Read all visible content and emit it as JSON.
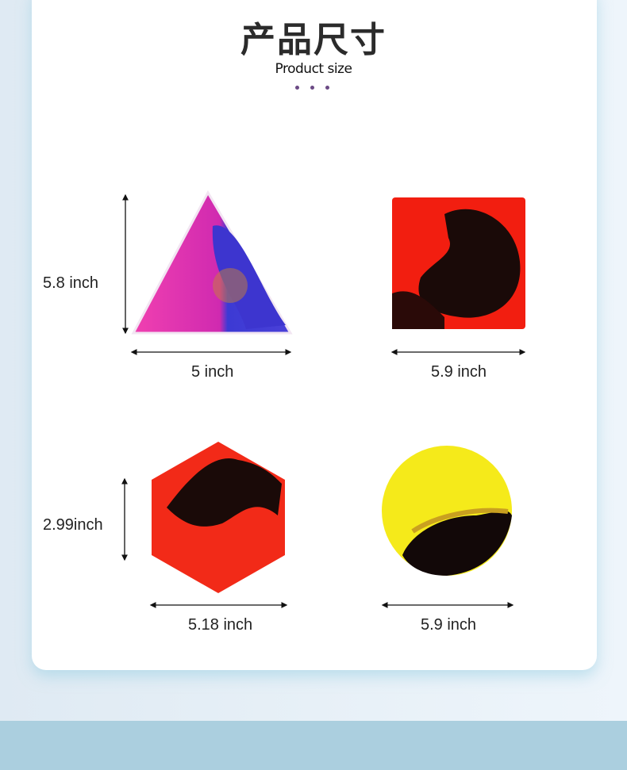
{
  "header": {
    "title": "产品尺寸",
    "subtitle": "Product size"
  },
  "products": [
    {
      "shape": "triangle",
      "height_label": "5.8  inch",
      "width_label": "5 inch",
      "colors": [
        "#f23aa8",
        "#3a3ad0"
      ]
    },
    {
      "shape": "square",
      "width_label": "5.9 inch",
      "colors": [
        "#f21e10",
        "#1a0a08"
      ]
    },
    {
      "shape": "hexagon",
      "height_label": "2.99inch",
      "width_label": "5.18  inch",
      "colors": [
        "#f22a18",
        "#1a0a08"
      ]
    },
    {
      "shape": "circle",
      "width_label": "5.9 inch",
      "colors": [
        "#f5ea1a",
        "#120808"
      ]
    }
  ],
  "colors": {
    "band": "#abcfdf",
    "accent_dots": "#6b4a85"
  }
}
